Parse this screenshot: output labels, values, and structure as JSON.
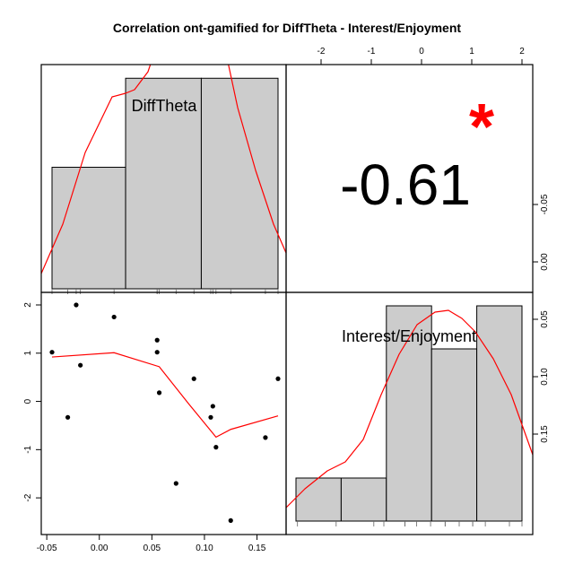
{
  "chart_data": {
    "type": "scatter-matrix",
    "title": "Correlation ont-gamified for DiffTheta - Interest/Enjoyment",
    "variables": [
      "DiffTheta",
      "Interest/Enjoyment"
    ],
    "correlation": {
      "value_label": "-0.61",
      "significance_label": "*",
      "significance_color": "#ff0000"
    },
    "scatter": {
      "x": [
        -0.045,
        -0.03,
        -0.022,
        -0.018,
        0.014,
        0.055,
        0.055,
        0.057,
        0.073,
        0.09,
        0.106,
        0.108,
        0.111,
        0.125,
        0.158,
        0.17
      ],
      "y": [
        1.02,
        -0.33,
        2.0,
        0.75,
        1.75,
        1.02,
        1.27,
        0.18,
        -1.7,
        0.47,
        -0.33,
        -0.1,
        -0.95,
        -2.47,
        -0.75,
        0.47
      ],
      "xlim": [
        -0.05,
        0.17
      ],
      "ylim": [
        -2.5,
        2.0
      ],
      "smooth_x": [
        -0.045,
        0.014,
        0.057,
        0.085,
        0.111,
        0.125,
        0.17
      ],
      "smooth_y": [
        0.92,
        1.01,
        0.72,
        -0.05,
        -0.74,
        -0.58,
        -0.3
      ],
      "point_color": "#000000",
      "line_color": "#ff0000"
    },
    "hist_x": {
      "breaks": [
        -0.05,
        0.0,
        0.05,
        0.1,
        0.15,
        0.2
      ],
      "heights": [
        0.56,
        0.97,
        0.97
      ],
      "bin_edges": [
        -0.045,
        0.025,
        0.097,
        0.17
      ],
      "rug": [
        -0.045,
        -0.03,
        -0.022,
        -0.018,
        0.014,
        0.055,
        0.055,
        0.057,
        0.073,
        0.09,
        0.106,
        0.108,
        0.111,
        0.125,
        0.158,
        0.17
      ],
      "bar_color": "#cccccc",
      "curve_color": "#ff0000"
    },
    "hist_y": {
      "bin_edges": [
        -2.5,
        -1.6,
        -0.7,
        0.2,
        1.1,
        2.0
      ],
      "heights": [
        0.2,
        0.2,
        1.0,
        0.8,
        1.0
      ],
      "rug": [
        -2.47,
        -1.7,
        -0.95,
        -0.75,
        -0.33,
        -0.33,
        -0.1,
        0.18,
        0.47,
        0.47,
        0.75,
        1.02,
        1.02,
        1.27,
        1.75,
        2.0
      ],
      "bar_color": "#cccccc",
      "curve_color": "#ff0000"
    },
    "bottom_ticks": [
      "-0.05",
      "0.00",
      "0.05",
      "0.10",
      "0.15"
    ],
    "bottom_tick_values": [
      -0.05,
      0.0,
      0.05,
      0.1,
      0.15
    ],
    "top_ticks": [
      "-2",
      "-1",
      "0",
      "1",
      "2"
    ],
    "top_tick_values": [
      -2,
      -1,
      0,
      1,
      2
    ],
    "left_ticks": [
      "2",
      "1",
      "0",
      "-1",
      "-2"
    ],
    "left_tick_values": [
      2,
      1,
      0,
      -1,
      -2
    ],
    "right_ticks": [
      "0.15",
      "0.10",
      "0.05",
      "0.00",
      "-0.05"
    ],
    "right_tick_values": [
      0.15,
      0.1,
      0.05,
      0.0,
      -0.05
    ]
  }
}
